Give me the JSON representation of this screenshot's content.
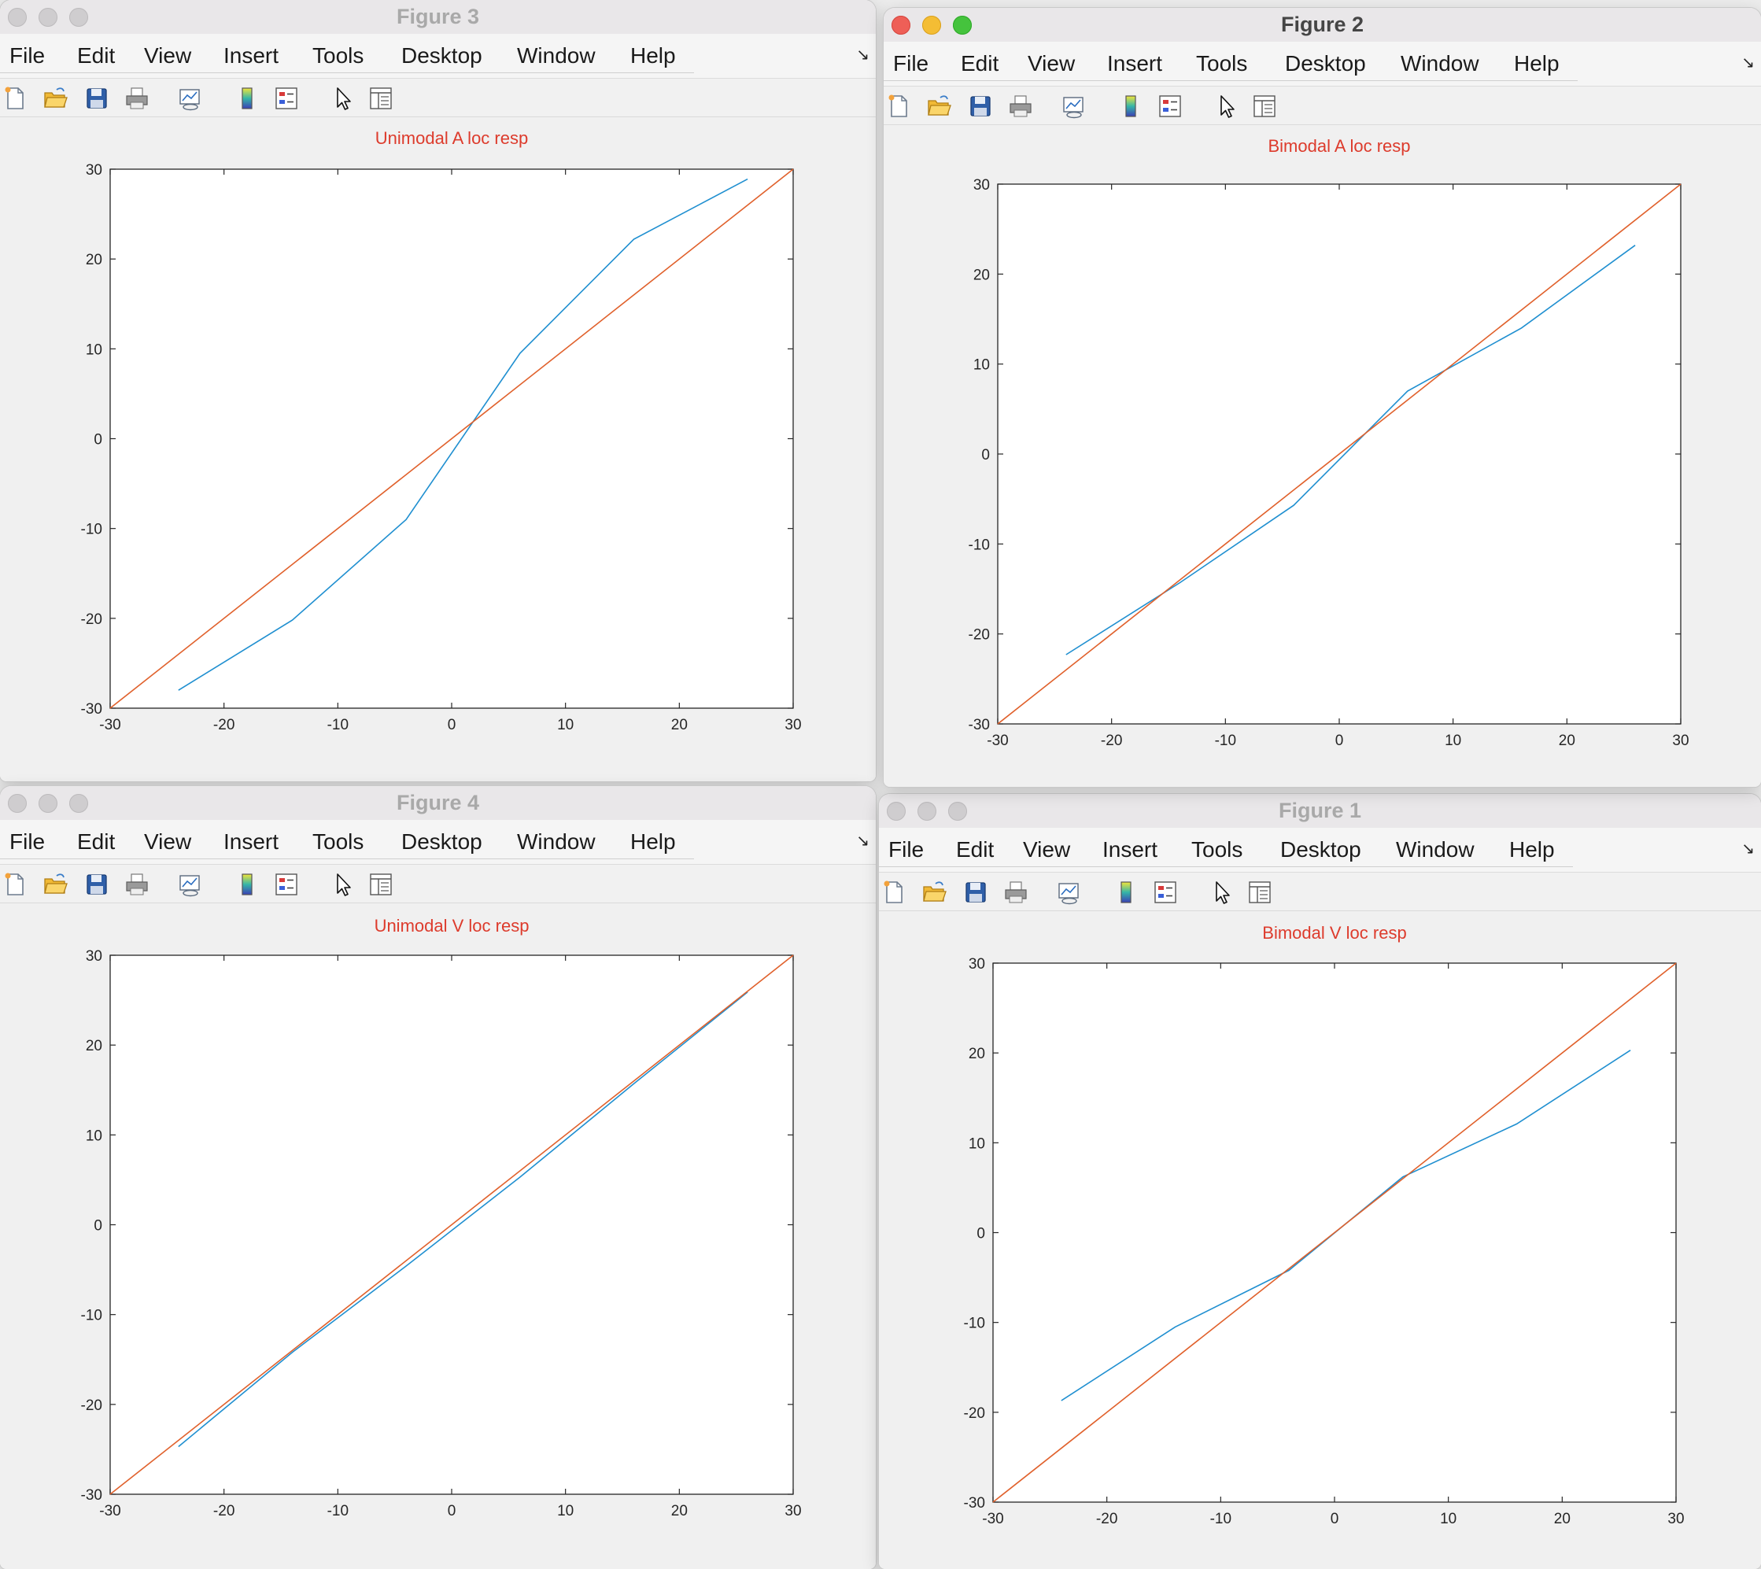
{
  "menu_labels": [
    "File",
    "Edit",
    "View",
    "Insert",
    "Tools",
    "Desktop",
    "Window",
    "Help"
  ],
  "toolbar_icons": [
    "new-figure-icon",
    "open-file-icon",
    "save-icon",
    "print-icon",
    "link-plot-icon",
    "colorbar-icon",
    "legend-icon",
    "pointer-icon",
    "property-inspector-icon"
  ],
  "colors": {
    "series_response": "#1f8fd0",
    "series_identity": "#e0602b",
    "title_text": "#dd3b2c",
    "close_light": "#ee5f57",
    "minimize_light": "#f4bd34",
    "zoom_light": "#45c33d"
  },
  "windows": [
    {
      "id": "fig3",
      "title": "Figure 3",
      "active": false,
      "chart_data": {
        "type": "line",
        "title": "Unimodal A loc resp",
        "xlim": [
          -30,
          30
        ],
        "ylim": [
          -30,
          30
        ],
        "xticks": [
          "-30",
          "-20",
          "-10",
          "0",
          "10",
          "20",
          "30"
        ],
        "yticks": [
          "-30",
          "-20",
          "-10",
          "0",
          "10",
          "20",
          "30"
        ],
        "grid": false,
        "series": [
          {
            "x": [
              -24,
              -14,
              -4,
              6,
              16,
              26
            ],
            "y": [
              -28,
              -20.2,
              -9,
              9.5,
              22.2,
              28.9
            ],
            "color": "#1f8fd0"
          },
          {
            "x": [
              -30,
              30
            ],
            "y": [
              -30,
              30
            ],
            "color": "#e0602b"
          }
        ]
      }
    },
    {
      "id": "fig2",
      "title": "Figure 2",
      "active": true,
      "chart_data": {
        "type": "line",
        "title": "Bimodal A loc resp",
        "xlim": [
          -30,
          30
        ],
        "ylim": [
          -30,
          30
        ],
        "xticks": [
          "-30",
          "-20",
          "-10",
          "0",
          "10",
          "20",
          "30"
        ],
        "yticks": [
          "-30",
          "-20",
          "-10",
          "0",
          "10",
          "20",
          "30"
        ],
        "grid": false,
        "series": [
          {
            "x": [
              -24,
              -14,
              -4,
              6,
              16,
              26
            ],
            "y": [
              -22.3,
              -14.3,
              -5.7,
              7,
              14,
              23.2
            ],
            "color": "#1f8fd0"
          },
          {
            "x": [
              -30,
              30
            ],
            "y": [
              -30,
              30
            ],
            "color": "#e0602b"
          }
        ]
      }
    },
    {
      "id": "fig4",
      "title": "Figure 4",
      "active": false,
      "chart_data": {
        "type": "line",
        "title": "Unimodal V loc resp",
        "xlim": [
          -30,
          30
        ],
        "ylim": [
          -30,
          30
        ],
        "xticks": [
          "-30",
          "-20",
          "-10",
          "0",
          "10",
          "20",
          "30"
        ],
        "yticks": [
          "-30",
          "-20",
          "-10",
          "0",
          "10",
          "20",
          "30"
        ],
        "grid": false,
        "series": [
          {
            "x": [
              -24,
              -14,
              -4,
              6,
              16,
              26
            ],
            "y": [
              -24.7,
              -14.2,
              -4.6,
              5.3,
              15.7,
              25.9
            ],
            "color": "#1f8fd0"
          },
          {
            "x": [
              -30,
              30
            ],
            "y": [
              -30,
              30
            ],
            "color": "#e0602b"
          }
        ]
      }
    },
    {
      "id": "fig1",
      "title": "Figure 1",
      "active": false,
      "chart_data": {
        "type": "line",
        "title": "Bimodal V loc resp",
        "xlim": [
          -30,
          30
        ],
        "ylim": [
          -30,
          30
        ],
        "xticks": [
          "-30",
          "-20",
          "-10",
          "0",
          "10",
          "20",
          "30"
        ],
        "yticks": [
          "-30",
          "-20",
          "-10",
          "0",
          "10",
          "20",
          "30"
        ],
        "grid": false,
        "series": [
          {
            "x": [
              -24,
              -14,
              -4,
              6,
              16,
              26
            ],
            "y": [
              -18.7,
              -10.5,
              -4.2,
              6.2,
              12.1,
              20.3
            ],
            "color": "#1f8fd0"
          },
          {
            "x": [
              -30,
              30
            ],
            "y": [
              -30,
              30
            ],
            "color": "#e0602b"
          }
        ]
      }
    }
  ]
}
